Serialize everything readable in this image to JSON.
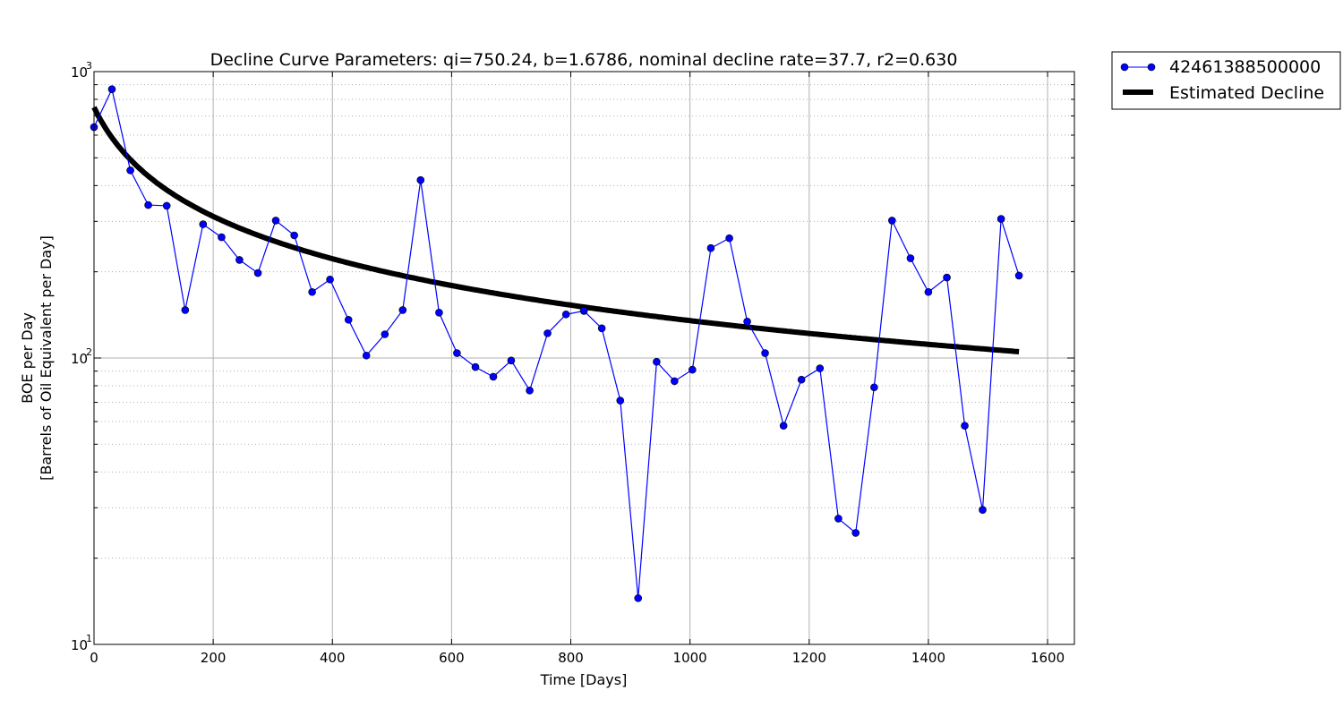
{
  "chart_data": {
    "type": "line",
    "title": "Decline Curve Parameters: qi=750.24, b=1.6786, nominal decline rate=37.7, r2=0.630",
    "xlabel": "Time [Days]",
    "ylabel_line1": "BOE per Day",
    "ylabel_line2": "[Barrels of Oil Equivalent per Day]",
    "xlim": [
      0,
      1645
    ],
    "ylim": [
      10,
      1000
    ],
    "yscale": "log",
    "grid": true,
    "legend_position": "outside-top-right",
    "x_ticks": [
      "0",
      "200",
      "400",
      "600",
      "800",
      "1000",
      "1200",
      "1400",
      "1600"
    ],
    "y_ticks": [
      {
        "base": "10",
        "exp": "1"
      },
      {
        "base": "10",
        "exp": "2"
      },
      {
        "base": "10",
        "exp": "3"
      }
    ],
    "series": [
      {
        "name": "42461388500000",
        "style": "line-markers",
        "color": "#0000ff",
        "x": [
          0,
          30,
          61,
          91,
          122,
          153,
          183,
          214,
          244,
          275,
          305,
          336,
          366,
          396,
          427,
          457,
          488,
          518,
          548,
          579,
          609,
          640,
          670,
          700,
          731,
          761,
          792,
          822,
          852,
          883,
          913,
          944,
          974,
          1004,
          1035,
          1066,
          1096,
          1126,
          1157,
          1187,
          1218,
          1249,
          1278,
          1309,
          1339,
          1370,
          1400,
          1431,
          1461,
          1491,
          1522,
          1552
        ],
        "values": [
          640,
          868,
          452,
          342,
          340,
          147,
          293,
          264,
          220,
          198,
          302,
          268,
          170,
          188,
          136,
          102,
          121,
          147,
          418,
          144,
          104,
          93,
          86,
          98,
          77,
          122,
          142,
          146,
          127,
          71,
          14.5,
          97,
          83,
          91,
          242,
          262,
          134,
          104,
          58,
          84,
          92,
          27.5,
          24.5,
          79,
          302,
          223,
          170,
          191,
          58,
          29.5,
          306,
          194
        ]
      },
      {
        "name": "Estimated Decline",
        "style": "thick-line",
        "color": "#000000",
        "qi": 750.24,
        "b": 1.6786,
        "Di_per_day": 0.01,
        "x_range": [
          0,
          1552
        ]
      }
    ]
  }
}
